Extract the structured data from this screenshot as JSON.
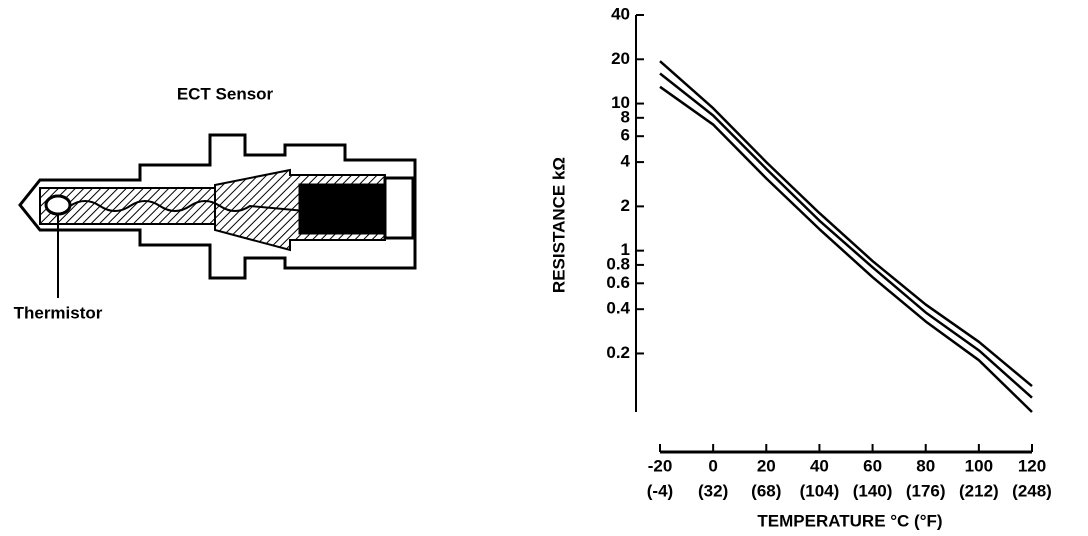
{
  "diagram": {
    "title": "ECT Sensor",
    "label": "Thermistor"
  },
  "chart_data": {
    "type": "line",
    "log_y": true,
    "x_label": "TEMPERATURE °C (°F)",
    "y_label": "RESISTANCE kΩ",
    "x": [
      -20,
      0,
      20,
      40,
      60,
      80,
      100,
      120
    ],
    "xlim": [
      -20,
      120
    ],
    "xticks": [
      -20,
      0,
      20,
      40,
      60,
      80,
      100,
      120
    ],
    "xticks_f": [
      "(-4)",
      "(32)",
      "(68)",
      "(104)",
      "(140)",
      "(176)",
      "(212)",
      "(248)"
    ],
    "ylim": [
      0.08,
      40
    ],
    "yticks": [
      0.2,
      0.4,
      0.6,
      0.8,
      1,
      2,
      4,
      6,
      8,
      10,
      20,
      40
    ],
    "series": [
      {
        "color": "#000000",
        "values": [
          19.4,
          9.3,
          4.0,
          1.8,
          0.85,
          0.43,
          0.24,
          0.12
        ]
      },
      {
        "color": "#000000",
        "values": [
          16,
          8.3,
          3.6,
          1.6,
          0.77,
          0.38,
          0.21,
          0.1
        ]
      },
      {
        "color": "#000000",
        "values": [
          13,
          7.2,
          3.1,
          1.4,
          0.66,
          0.33,
          0.18,
          0.08
        ]
      }
    ]
  }
}
